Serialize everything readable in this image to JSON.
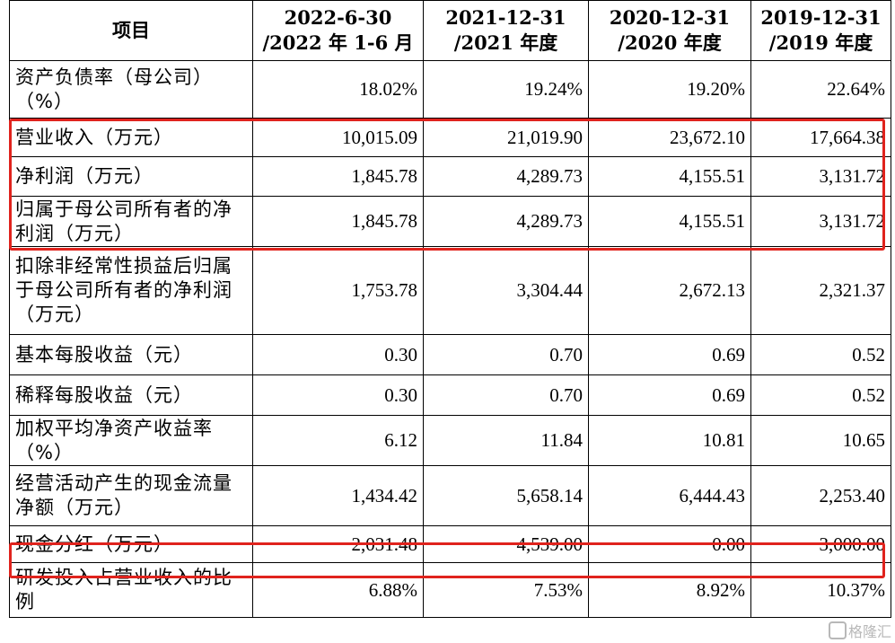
{
  "headers": [
    "项目",
    "2022-6-30 /2022 年 1-6 月",
    "2021-12-31 /2021 年度",
    "2020-12-31 /2020 年度",
    "2019-12-31 /2019 年度"
  ],
  "header_lines": [
    [
      "项目"
    ],
    [
      "2022-6-30",
      "/2022 年 1-6 月"
    ],
    [
      "2021-12-31",
      "/2021 年度"
    ],
    [
      "2020-12-31",
      "/2020 年度"
    ],
    [
      "2019-12-31",
      "/2019 年度"
    ]
  ],
  "rows": [
    {
      "label": "资产负债率（母公司）（%）",
      "values": [
        "18.02%",
        "19.24%",
        "19.20%",
        "22.64%"
      ]
    },
    {
      "label": "营业收入（万元）",
      "values": [
        "10,015.09",
        "21,019.90",
        "23,672.10",
        "17,664.38"
      ]
    },
    {
      "label": "净利润（万元）",
      "values": [
        "1,845.78",
        "4,289.73",
        "4,155.51",
        "3,131.72"
      ]
    },
    {
      "label": "归属于母公司所有者的净利润（万元）",
      "values": [
        "1,845.78",
        "4,289.73",
        "4,155.51",
        "3,131.72"
      ]
    },
    {
      "label": "扣除非经常性损益后归属于母公司所有者的净利润（万元）",
      "values": [
        "1,753.78",
        "3,304.44",
        "2,672.13",
        "2,321.37"
      ]
    },
    {
      "label": "基本每股收益（元）",
      "values": [
        "0.30",
        "0.70",
        "0.69",
        "0.52"
      ]
    },
    {
      "label": "稀释每股收益（元）",
      "values": [
        "0.30",
        "0.70",
        "0.69",
        "0.52"
      ]
    },
    {
      "label": "加权平均净资产收益率（%）",
      "values": [
        "6.12",
        "11.84",
        "10.81",
        "10.65"
      ]
    },
    {
      "label": "经营活动产生的现金流量净额（万元）",
      "values": [
        "1,434.42",
        "5,658.14",
        "6,444.43",
        "2,253.40"
      ]
    },
    {
      "label": "现金分红（万元）",
      "values": [
        "2,031.48",
        "4,539.00",
        "0.00",
        "3,000.00"
      ]
    },
    {
      "label": "研发投入占营业收入的比例",
      "values": [
        "6.88%",
        "7.53%",
        "8.92%",
        "10.37%"
      ]
    }
  ],
  "highlight_color": "#e0231d",
  "watermark": "格隆汇"
}
